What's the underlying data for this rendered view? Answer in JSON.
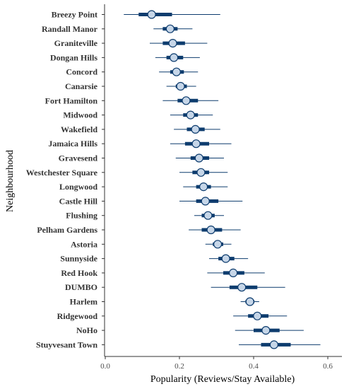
{
  "chart_data": {
    "type": "forest",
    "xlabel": "Popularity (Reviews/Stay Available)",
    "ylabel": "Neighbourhood",
    "xlim": [
      0.0,
      0.65
    ],
    "xticks": [
      0.0,
      0.2,
      0.4,
      0.6
    ],
    "xtick_labels": [
      "0.0",
      "0.2",
      "0.4",
      "0.6"
    ],
    "grid": false,
    "colors": {
      "interval": "#0d3c6e",
      "point_fill": "#c6d6e8",
      "point_stroke": "#0d3c6e"
    },
    "rows": [
      {
        "name": "Breezy Point",
        "est": 0.125,
        "inner": [
          0.09,
          0.18
        ],
        "outer": [
          0.05,
          0.31
        ]
      },
      {
        "name": "Randall Manor",
        "est": 0.175,
        "inner": [
          0.155,
          0.195
        ],
        "outer": [
          0.13,
          0.235
        ]
      },
      {
        "name": "Graniteville",
        "est": 0.182,
        "inner": [
          0.155,
          0.215
        ],
        "outer": [
          0.12,
          0.275
        ]
      },
      {
        "name": "Dongan Hills",
        "est": 0.185,
        "inner": [
          0.165,
          0.21
        ],
        "outer": [
          0.135,
          0.255
        ]
      },
      {
        "name": "Concord",
        "est": 0.192,
        "inner": [
          0.175,
          0.212
        ],
        "outer": [
          0.145,
          0.25
        ]
      },
      {
        "name": "Canarsie",
        "est": 0.203,
        "inner": [
          0.19,
          0.22
        ],
        "outer": [
          0.165,
          0.245
        ]
      },
      {
        "name": "Fort Hamilton",
        "est": 0.218,
        "inner": [
          0.195,
          0.25
        ],
        "outer": [
          0.155,
          0.305
        ]
      },
      {
        "name": "Midwood",
        "est": 0.23,
        "inner": [
          0.21,
          0.25
        ],
        "outer": [
          0.175,
          0.29
        ]
      },
      {
        "name": "Wakefield",
        "est": 0.243,
        "inner": [
          0.22,
          0.268
        ],
        "outer": [
          0.185,
          0.31
        ]
      },
      {
        "name": "Jamaica Hills",
        "est": 0.245,
        "inner": [
          0.215,
          0.28
        ],
        "outer": [
          0.175,
          0.34
        ]
      },
      {
        "name": "Gravesend",
        "est": 0.253,
        "inner": [
          0.23,
          0.28
        ],
        "outer": [
          0.19,
          0.32
        ]
      },
      {
        "name": "Westchester Square",
        "est": 0.258,
        "inner": [
          0.235,
          0.28
        ],
        "outer": [
          0.2,
          0.33
        ]
      },
      {
        "name": "Longwood",
        "est": 0.265,
        "inner": [
          0.245,
          0.285
        ],
        "outer": [
          0.21,
          0.33
        ]
      },
      {
        "name": "Castle Hill",
        "est": 0.27,
        "inner": [
          0.245,
          0.305
        ],
        "outer": [
          0.2,
          0.37
        ]
      },
      {
        "name": "Flushing",
        "est": 0.277,
        "inner": [
          0.26,
          0.295
        ],
        "outer": [
          0.24,
          0.32
        ]
      },
      {
        "name": "Pelham Gardens",
        "est": 0.285,
        "inner": [
          0.26,
          0.315
        ],
        "outer": [
          0.225,
          0.365
        ]
      },
      {
        "name": "Astoria",
        "est": 0.303,
        "inner": [
          0.29,
          0.318
        ],
        "outer": [
          0.27,
          0.34
        ]
      },
      {
        "name": "Sunnyside",
        "est": 0.325,
        "inner": [
          0.305,
          0.348
        ],
        "outer": [
          0.28,
          0.385
        ]
      },
      {
        "name": "Red Hook",
        "est": 0.345,
        "inner": [
          0.318,
          0.375
        ],
        "outer": [
          0.275,
          0.43
        ]
      },
      {
        "name": "DUMBO",
        "est": 0.368,
        "inner": [
          0.335,
          0.41
        ],
        "outer": [
          0.285,
          0.485
        ]
      },
      {
        "name": "Harlem",
        "est": 0.39,
        "inner": [
          0.378,
          0.402
        ],
        "outer": [
          0.365,
          0.415
        ]
      },
      {
        "name": "Ridgewood",
        "est": 0.41,
        "inner": [
          0.385,
          0.44
        ],
        "outer": [
          0.345,
          0.49
        ]
      },
      {
        "name": "NoHo",
        "est": 0.433,
        "inner": [
          0.4,
          0.47
        ],
        "outer": [
          0.35,
          0.535
        ]
      },
      {
        "name": "Stuyvesant Town",
        "est": 0.455,
        "inner": [
          0.42,
          0.5
        ],
        "outer": [
          0.36,
          0.58
        ]
      }
    ]
  }
}
